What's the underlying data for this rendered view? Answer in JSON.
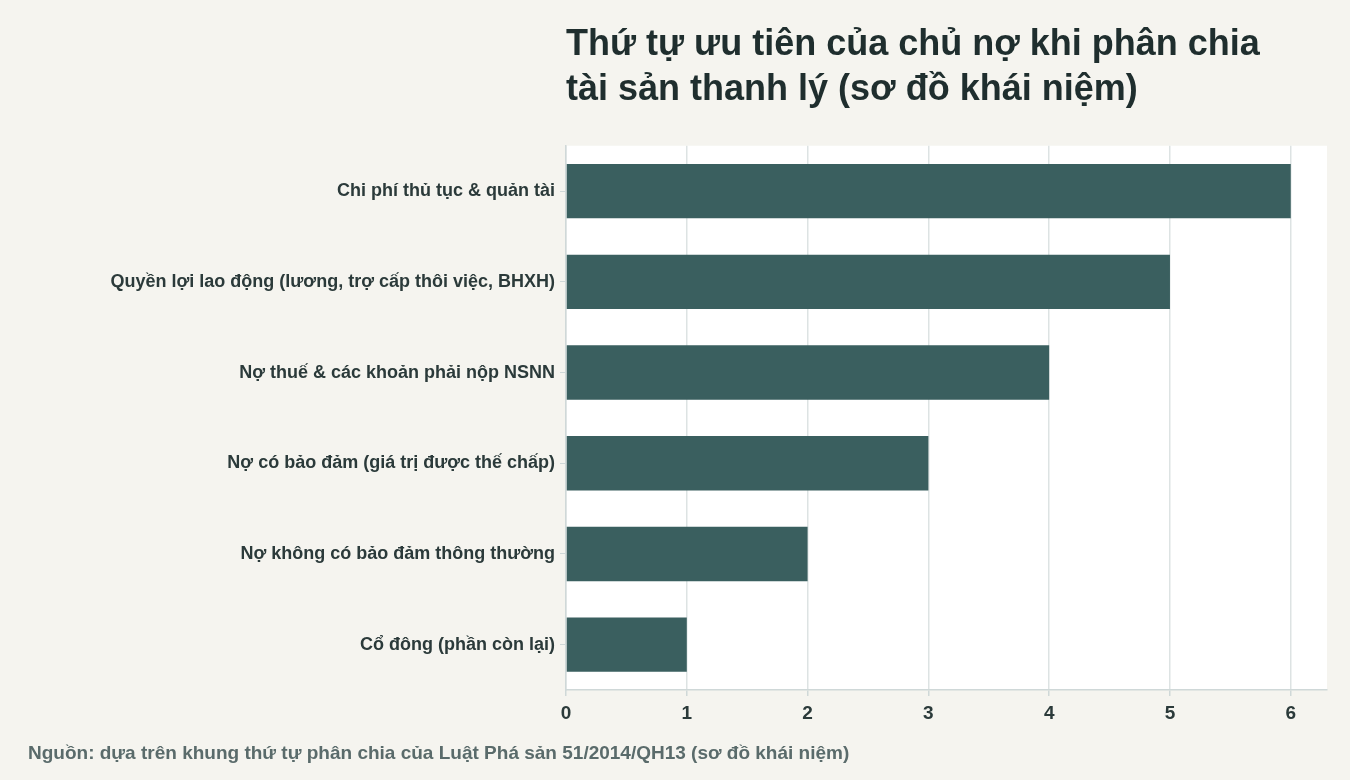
{
  "chart_data": {
    "type": "bar",
    "orientation": "horizontal",
    "title": "Thứ tự ưu tiên của chủ nợ khi phân chia tài sản thanh lý (sơ đồ khái niệm)",
    "categories": [
      "Chi phí thủ tục & quản tài",
      "Quyền lợi lao động (lương, trợ cấp thôi việc, BHXH)",
      "Nợ thuế & các khoản phải nộp NSNN",
      "Nợ có bảo đảm (giá trị được thế chấp)",
      "Nợ không có bảo đảm thông thường",
      "Cổ đông (phần còn lại)"
    ],
    "values": [
      6,
      5,
      4,
      3,
      2,
      1
    ],
    "color": "#3a5f5f",
    "xlim": [
      0,
      6.3
    ],
    "xticks": [
      0,
      1,
      2,
      3,
      4,
      5,
      6
    ],
    "grid": "x",
    "annotations": [
      "Nguồn: dựa trên khung thứ tự phân chia của Luật Phá sản 51/2014/QH13 (sơ đồ khái niệm)"
    ]
  }
}
